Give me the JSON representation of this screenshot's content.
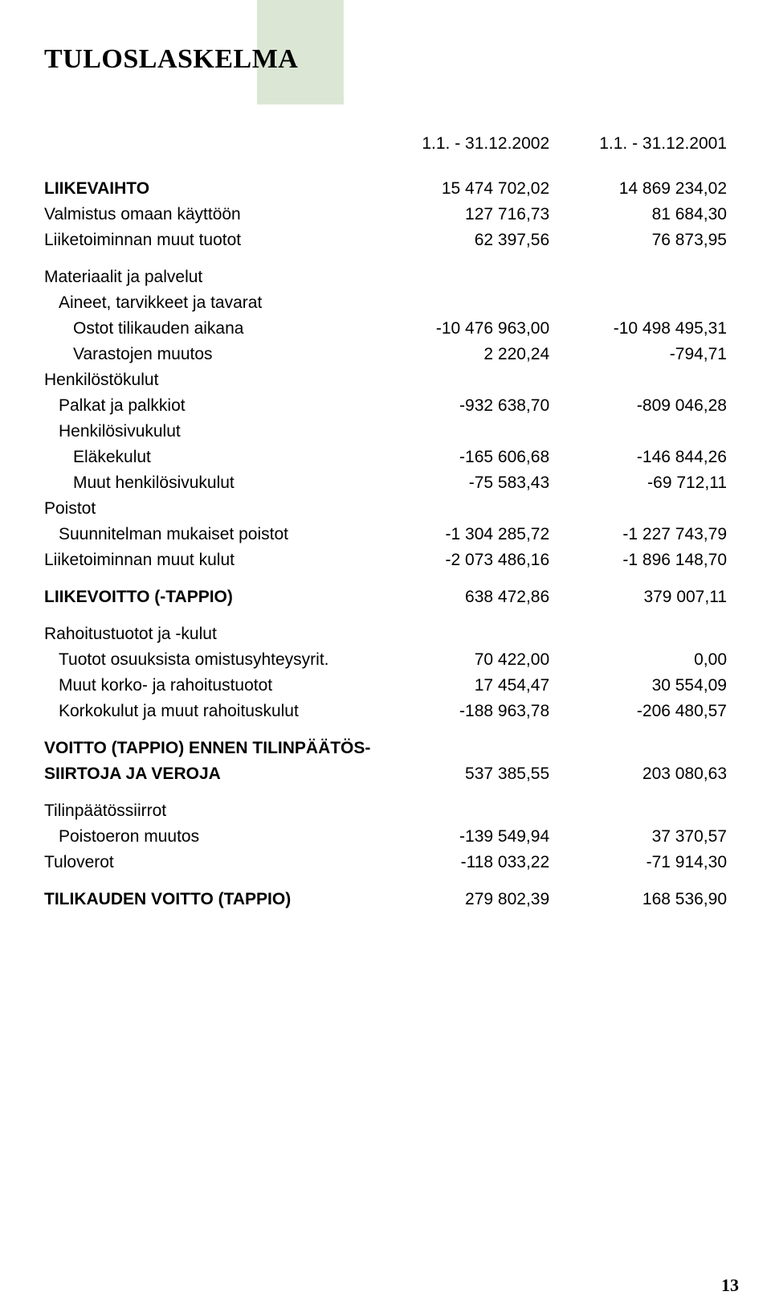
{
  "page": {
    "title": "TULOSLASKELMA",
    "number": "13",
    "background_color": "#ffffff",
    "text_color": "#000000",
    "green_bar_color": "#dbe7d4"
  },
  "periods": {
    "period1": "1.1. - 31.12.2002",
    "period2": "1.1. - 31.12.2001"
  },
  "rows": {
    "liikevaihto": {
      "label": "LIIKEVAIHTO",
      "v1": "15 474 702,02",
      "v2": "14 869 234,02"
    },
    "valmistus": {
      "label": "Valmistus omaan käyttöön",
      "v1": "127 716,73",
      "v2": "81 684,30"
    },
    "muut_tuotot": {
      "label": "Liiketoiminnan muut tuotot",
      "v1": "62 397,56",
      "v2": "76 873,95"
    },
    "materialit": {
      "label": "Materiaalit ja palvelut"
    },
    "aineet": {
      "label": "Aineet, tarvikkeet ja tavarat"
    },
    "ostot": {
      "label": "Ostot tilikauden aikana",
      "v1": "-10 476 963,00",
      "v2": "-10 498 495,31"
    },
    "varastojen": {
      "label": "Varastojen muutos",
      "v1": "2 220,24",
      "v2": "-794,71"
    },
    "henkilosto": {
      "label": "Henkilöstökulut"
    },
    "palkat": {
      "label": "Palkat ja palkkiot",
      "v1": "-932 638,70",
      "v2": "-809 046,28"
    },
    "sivukulut_h": {
      "label": "Henkilösivukulut"
    },
    "elakekulut": {
      "label": "Eläkekulut",
      "v1": "-165 606,68",
      "v2": "-146 844,26"
    },
    "muut_sivu": {
      "label": "Muut henkilösivukulut",
      "v1": "-75 583,43",
      "v2": "-69 712,11"
    },
    "poistot_h": {
      "label": "Poistot"
    },
    "suunnitelman": {
      "label": "Suunnitelman mukaiset poistot",
      "v1": "-1 304 285,72",
      "v2": "-1 227 743,79"
    },
    "muut_kulut": {
      "label": "Liiketoiminnan muut kulut",
      "v1": "-2 073 486,16",
      "v2": "-1 896 148,70"
    },
    "liikevoitto": {
      "label": "LIIKEVOITTO (-TAPPIO)",
      "v1": "638 472,86",
      "v2": "379 007,11"
    },
    "rahoitus_h": {
      "label": "Rahoitustuotot ja -kulut"
    },
    "tuotot_osuuk": {
      "label": "Tuotot osuuksista omistusyhteysyrit.",
      "v1": "70 422,00",
      "v2": "0,00"
    },
    "muut_korko": {
      "label": "Muut korko- ja rahoitustuotot",
      "v1": "17 454,47",
      "v2": "30 554,09"
    },
    "korkokulut": {
      "label": "Korkokulut ja muut rahoituskulut",
      "v1": "-188 963,78",
      "v2": "-206 480,57"
    },
    "voitto_ennen1": {
      "label": "VOITTO (TAPPIO) ENNEN TILINPÄÄTÖS-"
    },
    "voitto_ennen2": {
      "label": "SIIRTOJA JA VEROJA",
      "v1": "537 385,55",
      "v2": "203 080,63"
    },
    "tilinpaatos_h": {
      "label": "Tilinpäätössiirrot"
    },
    "poistoeron": {
      "label": "Poistoeron muutos",
      "v1": "-139 549,94",
      "v2": "37 370,57"
    },
    "tuloverot": {
      "label": "Tuloverot",
      "v1": "-118 033,22",
      "v2": "-71 914,30"
    },
    "tilikauden": {
      "label": "TILIKAUDEN VOITTO (TAPPIO)",
      "v1": "279 802,39",
      "v2": "168 536,90"
    }
  }
}
